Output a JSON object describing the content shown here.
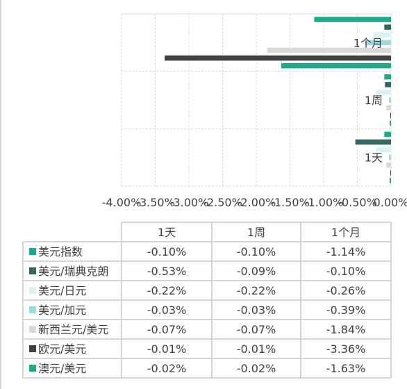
{
  "chart_data": {
    "type": "bar",
    "orientation": "horizontal",
    "categories": [
      "1天",
      "1周",
      "1个月"
    ],
    "xlim": [
      -0.04,
      0.0
    ],
    "x_ticks": [
      "-4.00%",
      "-3.50%",
      "-3.00%",
      "-2.50%",
      "-2.00%",
      "-1.50%",
      "-1.00%",
      "-0.50%",
      "0.00%"
    ],
    "grid": true,
    "series": [
      {
        "name": "美元指数",
        "color": "#1aab8a",
        "values": [
          -0.001,
          -0.001,
          -0.0114
        ],
        "labels": [
          "-0.10%",
          "-0.10%",
          "-1.14%"
        ]
      },
      {
        "name": "美元/瑞典克朗",
        "color": "#336661",
        "values": [
          -0.0053,
          -0.0009,
          -0.001
        ],
        "labels": [
          "-0.53%",
          "-0.09%",
          "-0.10%"
        ]
      },
      {
        "name": "美元/日元",
        "color": "#d9f3f4",
        "values": [
          -0.0022,
          -0.0022,
          -0.0026
        ],
        "labels": [
          "-0.22%",
          "-0.22%",
          "-0.26%"
        ]
      },
      {
        "name": "美元/加元",
        "color": "#9fd8dd",
        "values": [
          -0.0003,
          -0.0003,
          -0.0039
        ],
        "labels": [
          "-0.03%",
          "-0.03%",
          "-0.39%"
        ]
      },
      {
        "name": "新西兰元/美元",
        "color": "#d9d9d9",
        "values": [
          -0.0007,
          -0.0007,
          -0.0184
        ],
        "labels": [
          "-0.07%",
          "-0.07%",
          "-1.84%"
        ]
      },
      {
        "name": "欧元/美元",
        "color": "#404040",
        "values": [
          -0.0001,
          -0.0001,
          -0.0336
        ],
        "labels": [
          "-0.01%",
          "-0.01%",
          "-3.36%"
        ]
      },
      {
        "name": "澳元/美元",
        "color": "#1aab8a",
        "values": [
          -0.0002,
          -0.0002,
          -0.0163
        ],
        "labels": [
          "-0.02%",
          "-0.02%",
          "-1.63%"
        ]
      }
    ]
  }
}
